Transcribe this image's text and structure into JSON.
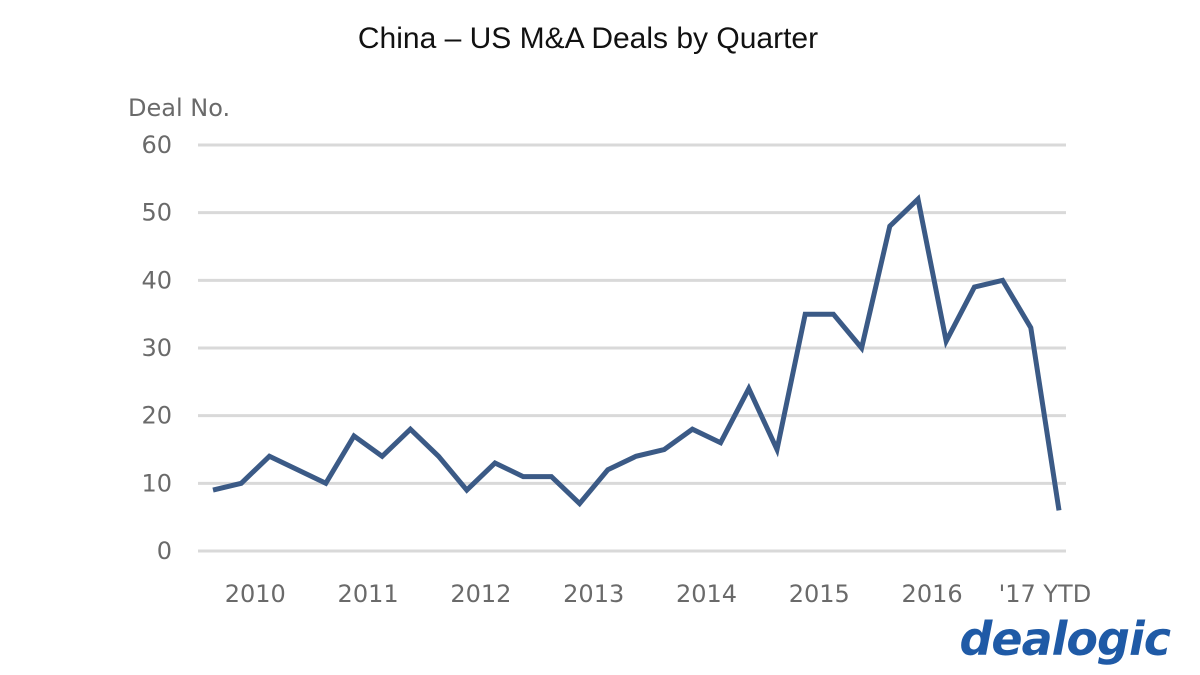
{
  "chart_data": {
    "type": "line",
    "title": "China – US M&A Deals by Quarter",
    "ylabel": "Deal No.",
    "xlabel": "",
    "ylim": [
      0,
      60
    ],
    "yticks": [
      0,
      10,
      20,
      30,
      40,
      50,
      60
    ],
    "year_labels": [
      "2010",
      "2011",
      "2012",
      "2013",
      "2014",
      "2015",
      "2016",
      "'17 YTD"
    ],
    "x": [
      "2010 Q1",
      "2010 Q2",
      "2010 Q3",
      "2010 Q4",
      "2011 Q1",
      "2011 Q2",
      "2011 Q3",
      "2011 Q4",
      "2012 Q1",
      "2012 Q2",
      "2012 Q3",
      "2012 Q4",
      "2013 Q1",
      "2013 Q2",
      "2013 Q3",
      "2013 Q4",
      "2014 Q1",
      "2014 Q2",
      "2014 Q3",
      "2014 Q4",
      "2015 Q1",
      "2015 Q2",
      "2015 Q3",
      "2015 Q4",
      "2016 Q1",
      "2016 Q2",
      "2016 Q3",
      "2016 Q4",
      "2017 Q1",
      "2017 Q2",
      "2017 Q3"
    ],
    "series": [
      {
        "values": [
          9,
          10,
          14,
          12,
          10,
          17,
          14,
          18,
          14,
          9,
          13,
          11,
          11,
          7,
          12,
          14,
          15,
          18,
          16,
          24,
          15,
          35,
          35,
          30,
          48,
          52,
          31,
          39,
          40,
          33,
          6
        ],
        "color": "#3b5a86"
      }
    ],
    "grid": true,
    "grid_color": "#d9d9d9"
  },
  "logo": {
    "text": "dealogic",
    "color": "#1f5aa6"
  }
}
